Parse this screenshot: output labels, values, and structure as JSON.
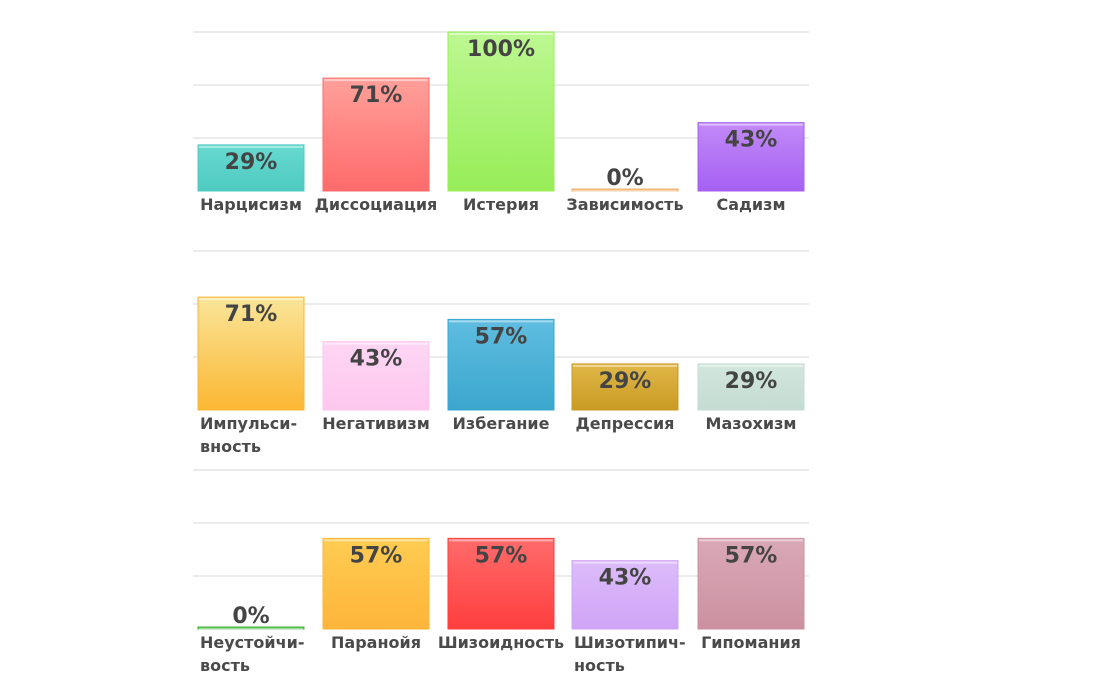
{
  "chart_data": [
    {
      "type": "bar",
      "ylim": [
        0,
        100
      ],
      "grid": true,
      "categories": [
        "Нарцисизм",
        "Диссоциация",
        "Истерия",
        "Зависимость",
        "Садизм"
      ],
      "values": [
        29,
        71,
        100,
        0,
        43
      ],
      "data_labels": [
        "29%",
        "71%",
        "100%",
        "0%",
        "43%"
      ],
      "tick_labels": [
        [
          "Нарцисизм"
        ],
        [
          "Диссоциация"
        ],
        [
          "Истерия"
        ],
        [
          "Зависимость"
        ],
        [
          "Садизм"
        ]
      ],
      "colors": [
        [
          "#67d9d0",
          "#4ecbc1"
        ],
        [
          "#ffa09a",
          "#ff6b6b"
        ],
        [
          "#bdf892",
          "#97ed58"
        ],
        [
          "#f7c98c",
          "#f1b06b"
        ],
        [
          "#c28af8",
          "#a560f2"
        ]
      ]
    },
    {
      "type": "bar",
      "ylim": [
        0,
        100
      ],
      "grid": true,
      "categories": [
        "Импульсивность",
        "Негативизм",
        "Избегание",
        "Депрессия",
        "Мазохизм"
      ],
      "values": [
        71,
        43,
        57,
        29,
        29
      ],
      "data_labels": [
        "71%",
        "43%",
        "57%",
        "29%",
        "29%"
      ],
      "tick_labels": [
        [
          "Импульси-",
          "вность"
        ],
        [
          "Негативизм"
        ],
        [
          "Избегание"
        ],
        [
          "Депрессия"
        ],
        [
          "Мазохизм"
        ]
      ],
      "colors": [
        [
          "#fae59a",
          "#fbb732"
        ],
        [
          "#ffd6f4",
          "#fdc7ee"
        ],
        [
          "#5fbde0",
          "#3ba6cd"
        ],
        [
          "#e0b748",
          "#c99b23"
        ],
        [
          "#d2e6dd",
          "#c4dcd3"
        ]
      ]
    },
    {
      "type": "bar",
      "ylim": [
        0,
        100
      ],
      "grid": true,
      "categories": [
        "Неустойчивость",
        "Паранойя",
        "Шизоидность",
        "Шизотипичность",
        "Гипомания"
      ],
      "values": [
        0,
        57,
        57,
        43,
        57
      ],
      "data_labels": [
        "0%",
        "57%",
        "57%",
        "43%",
        "57%"
      ],
      "tick_labels": [
        [
          "Неустойчи-",
          "вость"
        ],
        [
          "Паранойя"
        ],
        [
          "Шизоидность"
        ],
        [
          "Шизотипич-",
          "ность"
        ],
        [
          "Гипомания"
        ]
      ],
      "colors": [
        [
          "#7ad66e",
          "#43b43a"
        ],
        [
          "#ffcc52",
          "#fdb53a"
        ],
        [
          "#ff6b6b",
          "#ff3e3e"
        ],
        [
          "#dcbcfb",
          "#cfa4f5"
        ],
        [
          "#d9a8b6",
          "#cc91a1"
        ]
      ]
    }
  ]
}
